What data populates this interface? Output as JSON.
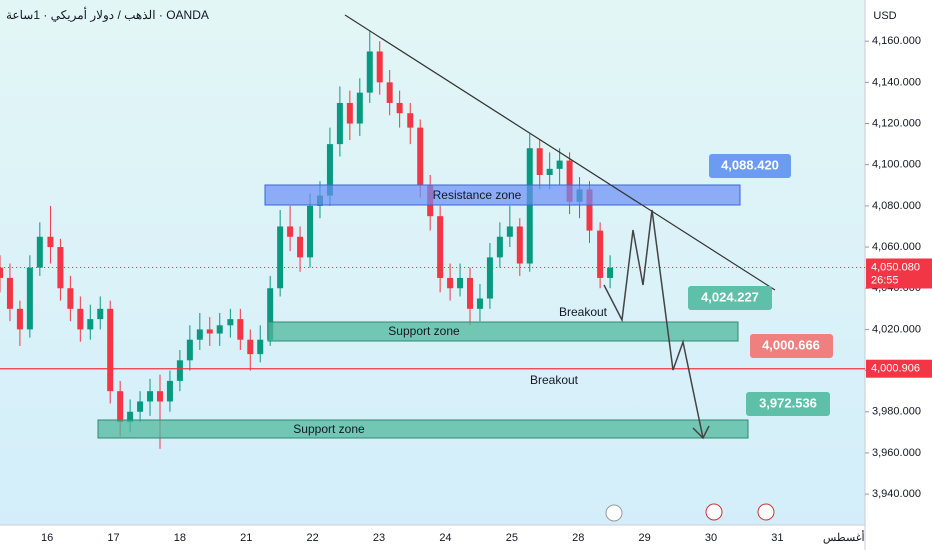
{
  "chart_data": {
    "type": "candlestick",
    "title": "الذهب / دولار أمريكي · 1ساعة · OANDA",
    "currency": "USD",
    "categories": [
      "16",
      "17",
      "18",
      "21",
      "22",
      "23",
      "24",
      "25",
      "28",
      "29",
      "30",
      "31",
      "أغسطس"
    ],
    "xlim": [
      -0.71,
      12.32
    ],
    "ylim": [
      3925,
      4180
    ],
    "yticks": [
      {
        "value": 3940,
        "label": "3,940.000"
      },
      {
        "value": 3960,
        "label": "3,960.000"
      },
      {
        "value": 3980,
        "label": "3,980.000"
      },
      {
        "value": 4000,
        "label": "4,000.000"
      },
      {
        "value": 4020,
        "label": "4,020.000"
      },
      {
        "value": 4040,
        "label": "4,040.000"
      },
      {
        "value": 4060,
        "label": "4,060.000"
      },
      {
        "value": 4080,
        "label": "4,080.000"
      },
      {
        "value": 4100,
        "label": "4,100.000"
      },
      {
        "value": 4120,
        "label": "4,120.000"
      },
      {
        "value": 4140,
        "label": "4,140.000"
      },
      {
        "value": 4160,
        "label": "4,160.000"
      }
    ],
    "up_color": "#089981",
    "down_color": "#f23645",
    "candles": {
      "t": [
        -0.71,
        -0.56,
        -0.41,
        -0.26,
        -0.11,
        0.05,
        0.2,
        0.35,
        0.5,
        0.65,
        0.8,
        0.95,
        1.1,
        1.25,
        1.4,
        1.55,
        1.7,
        1.85,
        2.0,
        2.15,
        2.3,
        2.45,
        2.6,
        2.76,
        2.91,
        3.06,
        3.21,
        3.36,
        3.51,
        3.66,
        3.81,
        3.96,
        4.11,
        4.26,
        4.41,
        4.56,
        4.71,
        4.86,
        5.01,
        5.16,
        5.31,
        5.47,
        5.62,
        5.77,
        5.92,
        6.07,
        6.22,
        6.37,
        6.52,
        6.67,
        6.82,
        6.97,
        7.12,
        7.27,
        7.42,
        7.57,
        7.72,
        7.87,
        8.02,
        8.17,
        8.33,
        8.48
      ],
      "open": [
        4050,
        4045,
        4030,
        4020,
        4050,
        4065,
        4060,
        4040,
        4030,
        4020,
        4025,
        4030,
        3990,
        3975,
        3980,
        3985,
        3990,
        3985,
        3995,
        4005,
        4015,
        4020,
        4018,
        4022,
        4025,
        4015,
        4008,
        4015,
        4040,
        4070,
        4065,
        4055,
        4080,
        4085,
        4110,
        4130,
        4120,
        4135,
        4155,
        4140,
        4130,
        4125,
        4118,
        4090,
        4075,
        4045,
        4040,
        4045,
        4030,
        4035,
        4055,
        4065,
        4070,
        4052,
        4108,
        4095,
        4098,
        4102,
        4082,
        4088,
        4068,
        4045
      ],
      "high": [
        4056,
        4052,
        4034,
        4056,
        4072,
        4080,
        4064,
        4046,
        4036,
        4032,
        4036,
        4034,
        3995,
        3986,
        3990,
        3996,
        3998,
        4000,
        4010,
        4022,
        4028,
        4026,
        4028,
        4030,
        4030,
        4020,
        4022,
        4046,
        4078,
        4080,
        4070,
        4086,
        4092,
        4118,
        4138,
        4136,
        4142,
        4165,
        4160,
        4146,
        4136,
        4130,
        4122,
        4095,
        4080,
        4052,
        4052,
        4050,
        4042,
        4062,
        4072,
        4080,
        4074,
        4115,
        4112,
        4106,
        4108,
        4106,
        4094,
        4092,
        4072,
        4056
      ],
      "low": [
        4038,
        4024,
        4012,
        4016,
        4046,
        4052,
        4034,
        4024,
        4014,
        4015,
        4020,
        3984,
        3968,
        3970,
        3975,
        3978,
        3962,
        3980,
        3990,
        4000,
        4010,
        4012,
        4012,
        4016,
        4010,
        4000,
        4004,
        4012,
        4036,
        4058,
        4048,
        4050,
        4074,
        4080,
        4104,
        4112,
        4114,
        4130,
        4134,
        4124,
        4118,
        4110,
        4084,
        4068,
        4038,
        4034,
        4036,
        4022,
        4024,
        4030,
        4050,
        4060,
        4046,
        4048,
        4088,
        4088,
        4090,
        4076,
        4074,
        4062,
        4040,
        4040
      ],
      "close": [
        4045,
        4030,
        4020,
        4050,
        4065,
        4060,
        4040,
        4030,
        4020,
        4025,
        4030,
        3990,
        3975,
        3980,
        3985,
        3990,
        3985,
        3995,
        4005,
        4015,
        4020,
        4018,
        4022,
        4025,
        4015,
        4008,
        4015,
        4040,
        4070,
        4065,
        4055,
        4080,
        4085,
        4110,
        4130,
        4120,
        4135,
        4155,
        4140,
        4130,
        4125,
        4118,
        4090,
        4075,
        4045,
        4040,
        4045,
        4030,
        4035,
        4055,
        4065,
        4070,
        4052,
        4108,
        4095,
        4098,
        4102,
        4082,
        4088,
        4068,
        4045,
        4050
      ]
    },
    "current_price": {
      "value": 4050.08,
      "label": "4,050.080",
      "countdown": "26:55"
    },
    "horizontal_line": {
      "value": 4000.906,
      "label": "4,000.906",
      "color": "#f23645"
    },
    "annotations": {
      "resistance": "Resistance zone",
      "support_upper": "Support zone",
      "support_lower": "Support zone",
      "breakout_upper": "Breakout",
      "breakout_lower": "Breakout",
      "price_blue": "4,088.420",
      "price_teal_upper": "4,024.227",
      "price_red": "4,000.666",
      "price_teal_lower": "3,972.536"
    }
  }
}
